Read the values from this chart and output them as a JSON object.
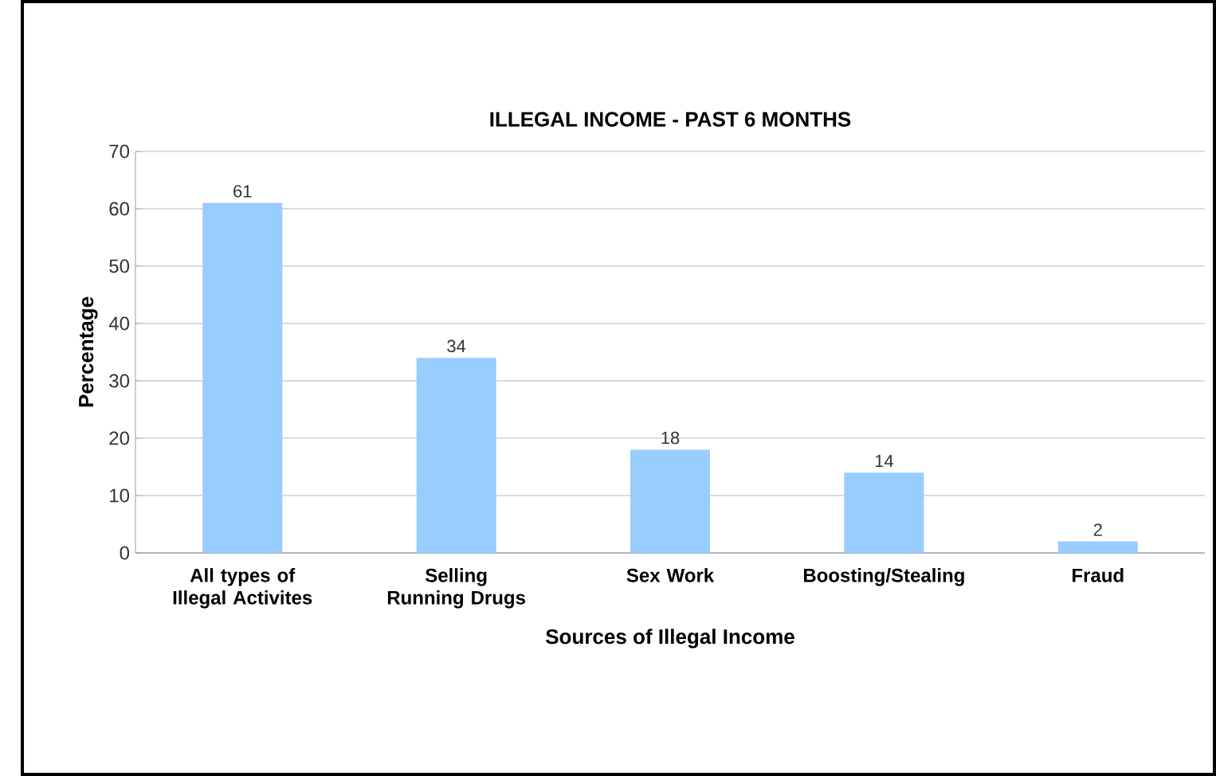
{
  "chart_data": {
    "type": "bar",
    "title": "ILLEGAL INCOME - PAST 6 MONTHS",
    "xlabel": "Sources of Illegal Income",
    "ylabel": "Percentage",
    "categories": [
      "All types of Illegal Activites",
      "Selling Running Drugs",
      "Sex Work",
      "Boosting/Stealing",
      "Fraud"
    ],
    "values": [
      61,
      34,
      18,
      14,
      2
    ],
    "color": "#99ccff",
    "ylim": [
      0,
      70
    ],
    "yticks": [
      0,
      10,
      20,
      30,
      40,
      50,
      60,
      70
    ],
    "grid": "y",
    "data_labels": true
  }
}
